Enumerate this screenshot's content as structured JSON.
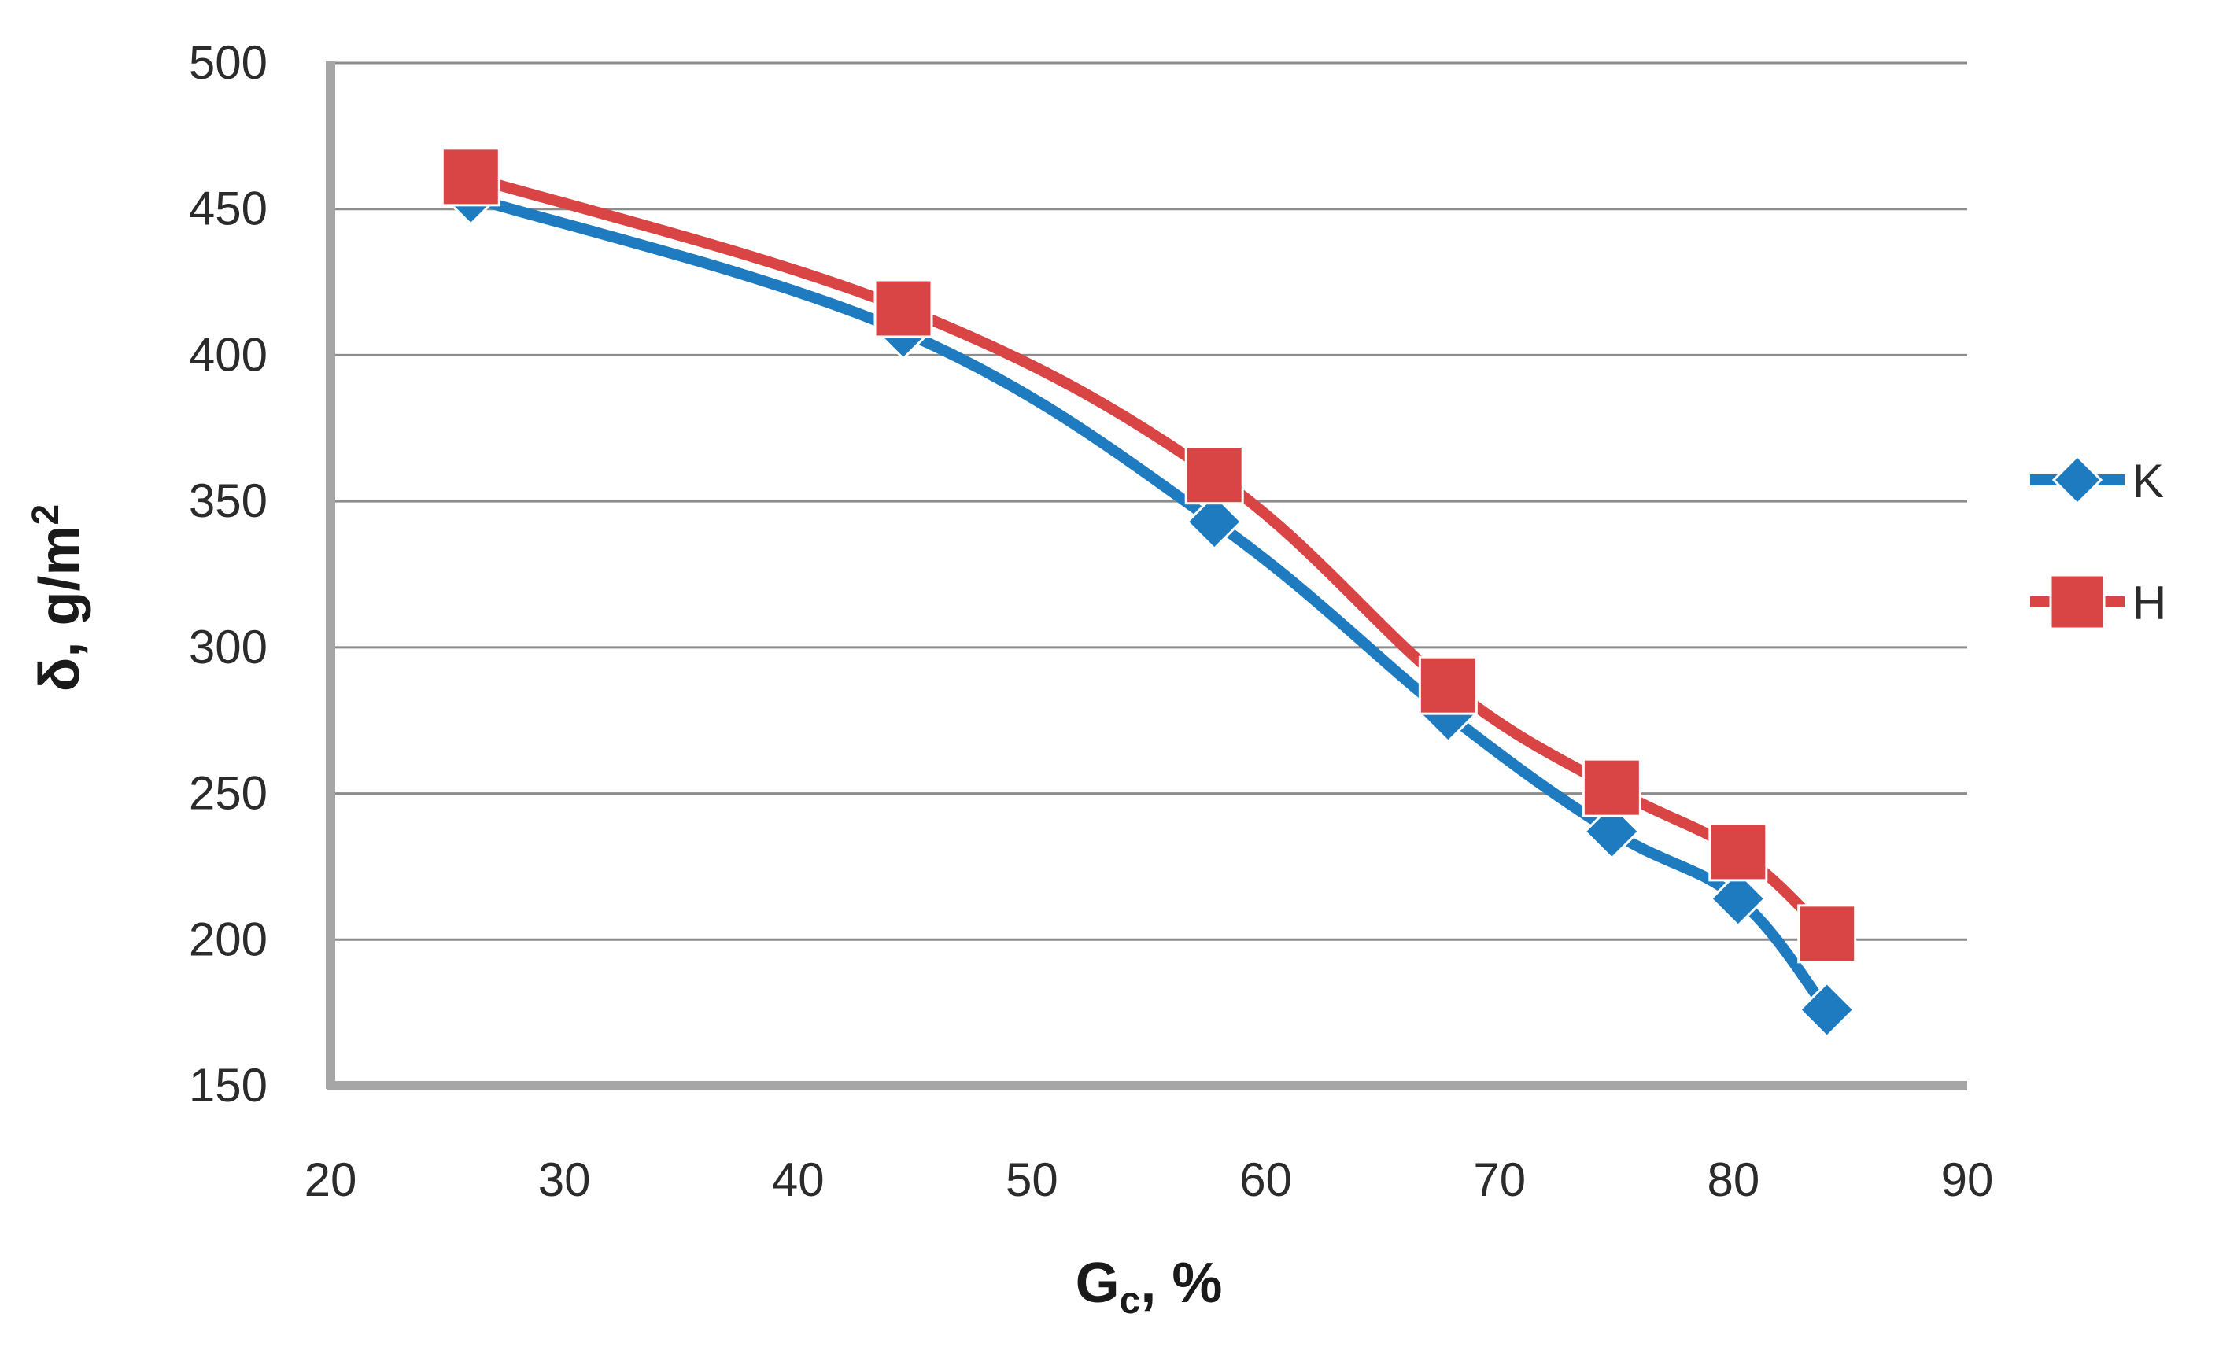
{
  "chart_data": {
    "type": "line",
    "x_axis": {
      "label_main": "G",
      "label_sub": "c",
      "label_suffix": ", %",
      "range": [
        20,
        90
      ],
      "ticks": [
        20,
        30,
        40,
        50,
        60,
        70,
        80,
        90
      ]
    },
    "y_axis": {
      "label_main": "δ, g/m",
      "label_sup": "2",
      "range": [
        150,
        500
      ],
      "ticks": [
        150,
        200,
        250,
        300,
        350,
        400,
        450,
        500
      ]
    },
    "grid": true,
    "legend_position": "right",
    "series": [
      {
        "name": "K",
        "color": "#1f7bc0",
        "marker": "diamond",
        "x": [
          26,
          44.5,
          57.8,
          67.8,
          74.8,
          80.2,
          84
        ],
        "y": [
          454,
          408,
          343,
          277,
          237,
          214,
          176
        ]
      },
      {
        "name": "H",
        "color": "#d94444",
        "marker": "square",
        "x": [
          26,
          44.5,
          57.8,
          67.8,
          74.8,
          80.2,
          84
        ],
        "y": [
          461,
          416,
          359,
          287,
          252,
          230,
          202
        ]
      }
    ]
  }
}
